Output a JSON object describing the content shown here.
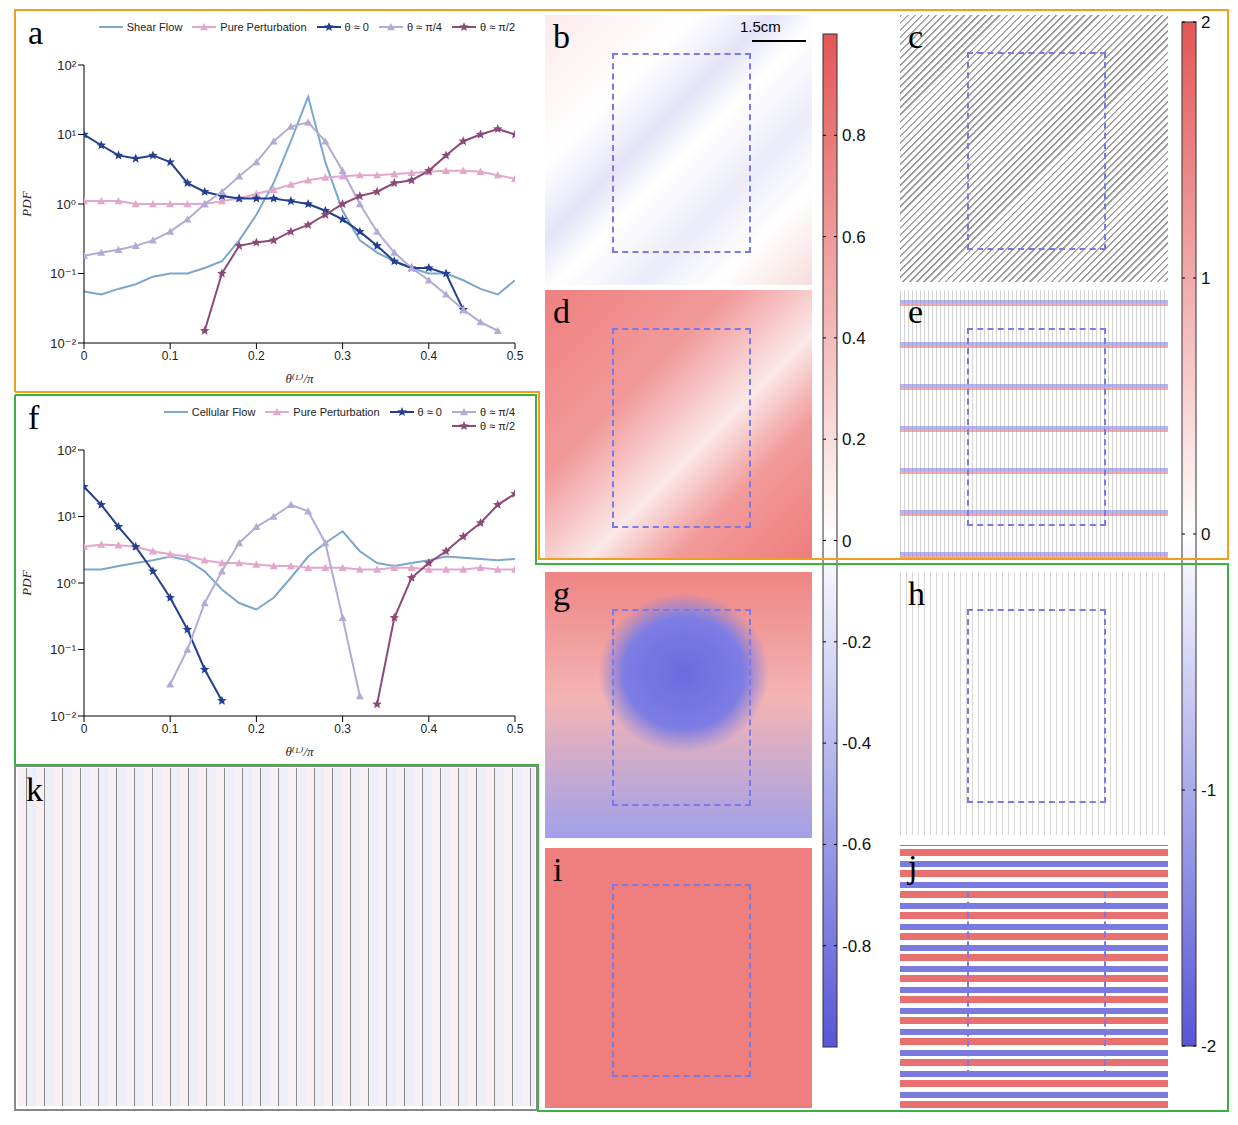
{
  "chart_data": [
    {
      "type": "line",
      "panel_label": "a",
      "x_label": "θ⁽ᴸ⁾/π",
      "y_label": "PDF",
      "log": "y",
      "legend": "top",
      "x": [
        0,
        0.02,
        0.04,
        0.06,
        0.08,
        0.1,
        0.12,
        0.14,
        0.16,
        0.18,
        0.2,
        0.22,
        0.24,
        0.26,
        0.28,
        0.3,
        0.32,
        0.34,
        0.36,
        0.38,
        0.4,
        0.42,
        0.44,
        0.46,
        0.48,
        0.5
      ],
      "xlim": [
        0,
        0.5
      ],
      "xticks": [
        0,
        0.1,
        0.2,
        0.3,
        0.4,
        0.5
      ],
      "ylim": [
        0.01,
        100
      ],
      "yticks": [
        {
          "value": 0.01,
          "label": "10⁻²"
        },
        {
          "value": 0.1,
          "label": "10⁻¹"
        },
        {
          "value": 1,
          "label": "10⁰"
        },
        {
          "value": 10,
          "label": "10¹"
        },
        {
          "value": 100,
          "label": "10²"
        }
      ],
      "series": [
        {
          "name": "Shear Flow",
          "color": "#7ba7cc",
          "marker": "none",
          "line_style": "solid",
          "values": [
            0.055,
            0.05,
            0.06,
            0.07,
            0.09,
            0.1,
            0.1,
            0.12,
            0.15,
            0.3,
            0.7,
            2,
            8,
            35,
            4,
            0.8,
            0.3,
            0.2,
            0.15,
            0.12,
            0.1,
            0.1,
            0.08,
            0.06,
            0.05,
            0.08
          ]
        },
        {
          "name": "Pure Perturbation",
          "color": "#e3a6cd",
          "marker": "triangle",
          "line_style": "solid",
          "values": [
            1.1,
            1.1,
            1.1,
            1.0,
            1.0,
            1.0,
            1.0,
            1.0,
            1.1,
            1.2,
            1.4,
            1.6,
            1.9,
            2.2,
            2.4,
            2.5,
            2.6,
            2.6,
            2.7,
            2.8,
            2.9,
            3.0,
            3.0,
            2.9,
            2.6,
            2.3
          ]
        },
        {
          "name": "θ ≈ 0",
          "color": "#243f8f",
          "marker": "star",
          "line_style": "solid",
          "values": [
            10,
            7,
            5,
            4.5,
            5,
            4,
            2,
            1.5,
            1.3,
            1.2,
            1.2,
            1.2,
            1.1,
            1.0,
            0.8,
            0.6,
            0.4,
            0.25,
            0.15,
            0.12,
            0.12,
            0.1,
            0.03,
            null,
            null,
            null
          ]
        },
        {
          "name": "θ ≈ π/4",
          "color": "#b3aad6",
          "marker": "triangle",
          "line_style": "solid",
          "values": [
            0.18,
            0.2,
            0.22,
            0.25,
            0.3,
            0.4,
            0.6,
            1.0,
            1.5,
            2.5,
            4,
            8,
            13,
            15,
            8,
            3,
            1.0,
            0.4,
            0.2,
            0.12,
            0.08,
            0.05,
            0.03,
            0.02,
            0.015,
            null
          ]
        },
        {
          "name": "θ ≈ π/2",
          "color": "#8c4a78",
          "marker": "star",
          "line_style": "solid",
          "values": [
            null,
            null,
            null,
            null,
            null,
            null,
            null,
            0.015,
            0.1,
            0.25,
            0.28,
            0.3,
            0.4,
            0.5,
            0.7,
            1.0,
            1.3,
            1.5,
            2,
            2.2,
            3,
            5,
            8,
            10,
            12,
            10
          ]
        }
      ]
    },
    {
      "type": "line",
      "panel_label": "f",
      "x_label": "θ⁽ᴸ⁾/π",
      "y_label": "PDF",
      "log": "y",
      "legend": "top",
      "x": [
        0,
        0.02,
        0.04,
        0.06,
        0.08,
        0.1,
        0.12,
        0.14,
        0.16,
        0.18,
        0.2,
        0.22,
        0.24,
        0.26,
        0.28,
        0.3,
        0.32,
        0.34,
        0.36,
        0.38,
        0.4,
        0.42,
        0.44,
        0.46,
        0.48,
        0.5
      ],
      "xlim": [
        0,
        0.5
      ],
      "xticks": [
        0,
        0.1,
        0.2,
        0.3,
        0.4,
        0.5
      ],
      "ylim": [
        0.01,
        100
      ],
      "yticks": [
        {
          "value": 0.01,
          "label": "10⁻²"
        },
        {
          "value": 0.1,
          "label": "10⁻¹"
        },
        {
          "value": 1,
          "label": "10⁰"
        },
        {
          "value": 10,
          "label": "10¹"
        },
        {
          "value": 100,
          "label": "10²"
        }
      ],
      "series": [
        {
          "name": "Cellular Flow",
          "color": "#7ba7cc",
          "marker": "none",
          "line_style": "solid",
          "values": [
            1.6,
            1.6,
            1.8,
            2.0,
            2.2,
            2.5,
            2.2,
            1.5,
            0.8,
            0.5,
            0.4,
            0.6,
            1.2,
            2.5,
            4,
            6,
            3,
            2,
            1.8,
            2,
            2.2,
            2.5,
            2.4,
            2.3,
            2.2,
            2.3
          ]
        },
        {
          "name": "Pure Perturbation",
          "color": "#e3a6cd",
          "marker": "triangle",
          "line_style": "solid",
          "values": [
            3.5,
            3.8,
            3.7,
            3.5,
            3,
            2.7,
            2.5,
            2.2,
            2,
            2,
            1.9,
            1.8,
            1.8,
            1.7,
            1.7,
            1.7,
            1.6,
            1.6,
            1.7,
            1.7,
            1.6,
            1.6,
            1.6,
            1.7,
            1.6,
            1.6
          ]
        },
        {
          "name": "θ ≈ 0",
          "color": "#243f8f",
          "marker": "star",
          "line_style": "solid",
          "values": [
            28,
            15,
            7,
            3.5,
            1.5,
            0.6,
            0.2,
            0.05,
            0.017,
            null,
            null,
            null,
            null,
            null,
            null,
            null,
            null,
            null,
            null,
            null,
            null,
            null,
            null,
            null,
            null,
            null
          ]
        },
        {
          "name": "θ ≈ π/4",
          "color": "#b3aad6",
          "marker": "triangle",
          "line_style": "solid",
          "values": [
            null,
            null,
            null,
            null,
            null,
            0.03,
            0.1,
            0.5,
            1.5,
            4,
            7,
            10,
            15,
            12,
            4,
            0.3,
            0.02,
            null,
            null,
            null,
            null,
            null,
            null,
            null,
            null,
            null
          ]
        },
        {
          "name": "θ ≈ π/2",
          "color": "#8c4a78",
          "marker": "star",
          "line_style": "solid",
          "values": [
            null,
            null,
            null,
            null,
            null,
            null,
            null,
            null,
            null,
            null,
            null,
            null,
            null,
            null,
            null,
            null,
            null,
            0.015,
            0.3,
            1.2,
            2,
            3,
            5,
            8,
            15,
            22
          ]
        }
      ]
    }
  ],
  "images": [
    {
      "label": "b"
    },
    {
      "label": "c"
    },
    {
      "label": "d"
    },
    {
      "label": "e"
    },
    {
      "label": "g"
    },
    {
      "label": "h"
    },
    {
      "label": "i"
    },
    {
      "label": "j"
    },
    {
      "label": "k"
    }
  ],
  "scale_bar": "1.5cm",
  "colorbars": [
    {
      "range": [
        -1,
        1
      ],
      "ticks": [
        0.8,
        0.6,
        0.4,
        0.2,
        0,
        -0.2,
        -0.4,
        -0.6,
        -0.8
      ]
    },
    {
      "range": [
        -2,
        2
      ],
      "ticks": [
        2,
        1,
        0,
        -1,
        -2
      ]
    }
  ]
}
